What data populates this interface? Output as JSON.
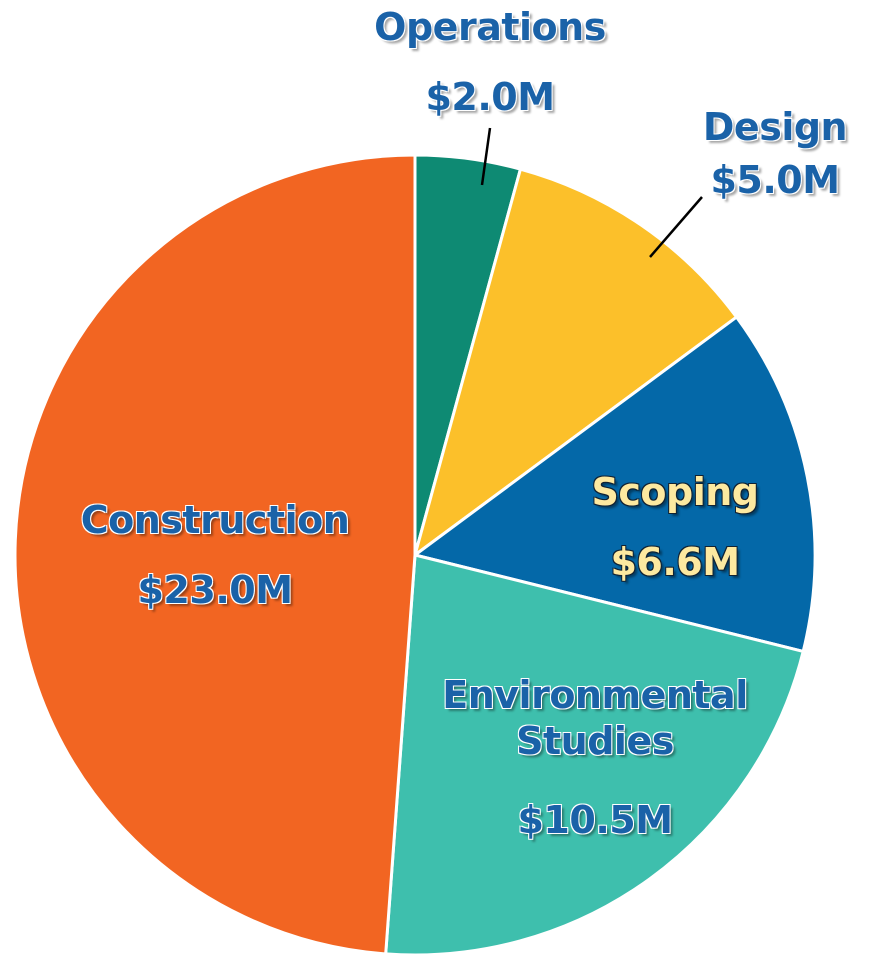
{
  "chart_data": {
    "type": "pie",
    "categories": [
      "Operations",
      "Design",
      "Scoping",
      "Environmental Studies",
      "Construction"
    ],
    "values": [
      2.0,
      5.0,
      6.6,
      10.5,
      23.0
    ],
    "value_labels": [
      "$2.0M",
      "$5.0M",
      "$6.6M",
      "$10.5M",
      "$23.0M"
    ],
    "colors": [
      "#0e8a73",
      "#fcc02a",
      "#0468a8",
      "#3ebfad",
      "#f26522"
    ]
  }
}
